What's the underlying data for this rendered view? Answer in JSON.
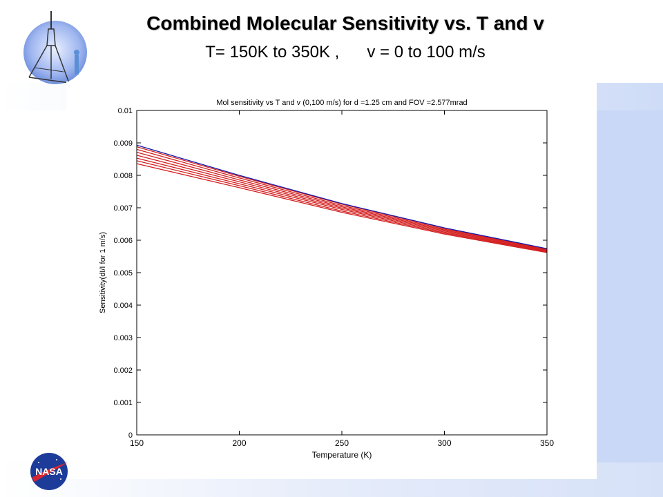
{
  "slide": {
    "title": "Combined Molecular Sensitivity vs. T and v",
    "subtitle": "T= 150K to 350K ,      v = 0 to 100 m/s"
  },
  "logos": {
    "mission_logo_icon": "mission-emblem-icon",
    "nasa_logo_text": "NASA"
  },
  "colors": {
    "accent_band": "#c9d8f6",
    "series_top": "#1a1aa8",
    "series_other": "#d42020"
  },
  "chart_data": {
    "type": "line",
    "title": "Mol sensitivity vs T  and v (0,100 m/s) for d =1.25 cm and FOV =2.577mrad",
    "xlabel": "Temperature (K)",
    "ylabel": "Sensitivity(dI/I for 1 m/s)",
    "xlim": [
      150,
      350
    ],
    "ylim": [
      0,
      0.01
    ],
    "xticks": [
      "150",
      "200",
      "250",
      "300",
      "350"
    ],
    "yticks": [
      "0",
      "0.001",
      "0.002",
      "0.003",
      "0.004",
      "0.005",
      "0.006",
      "0.007",
      "0.008",
      "0.009",
      "0.01"
    ],
    "grid": false,
    "x": [
      150,
      200,
      250,
      300,
      350
    ],
    "series": [
      {
        "values": [
          0.00893,
          0.008,
          0.00713,
          0.00638,
          0.00574
        ],
        "color": "#1a1aa8"
      },
      {
        "values": [
          0.00888,
          0.00797,
          0.00711,
          0.00637,
          0.00573
        ],
        "color": "#d42020"
      },
      {
        "values": [
          0.0088,
          0.00792,
          0.00707,
          0.00634,
          0.00572
        ],
        "color": "#d42020"
      },
      {
        "values": [
          0.00871,
          0.00786,
          0.00703,
          0.00631,
          0.0057
        ],
        "color": "#d42020"
      },
      {
        "values": [
          0.00862,
          0.0078,
          0.00699,
          0.00628,
          0.00568
        ],
        "color": "#d42020"
      },
      {
        "values": [
          0.00853,
          0.00774,
          0.00695,
          0.00625,
          0.00566
        ],
        "color": "#d42020"
      },
      {
        "values": [
          0.00845,
          0.00768,
          0.0069,
          0.00622,
          0.00564
        ],
        "color": "#d42020"
      },
      {
        "values": [
          0.00836,
          0.00762,
          0.00686,
          0.00619,
          0.00562
        ],
        "color": "#d42020"
      }
    ]
  }
}
